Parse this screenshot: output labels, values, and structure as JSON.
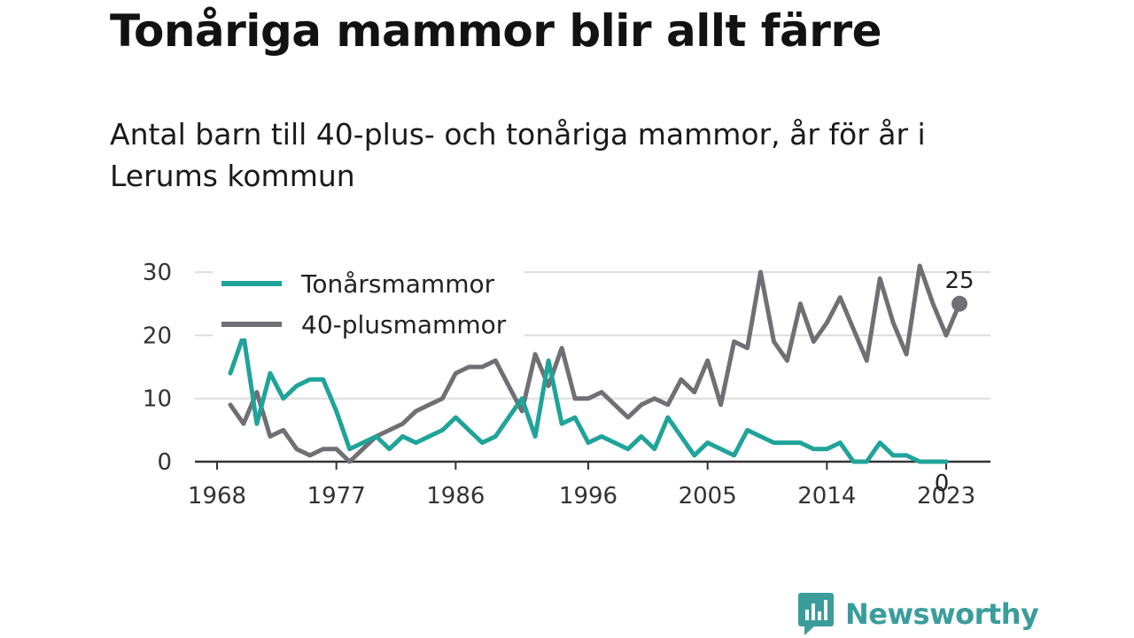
{
  "title": "Tonåriga mammor blir allt färre",
  "subtitle": "Antal barn till 40-plus- och tonåriga mammor, år för år i Lerums kommun",
  "brand": "Newsworthy",
  "chart_data": {
    "type": "line",
    "x": [
      1969,
      1970,
      1971,
      1972,
      1973,
      1974,
      1975,
      1976,
      1977,
      1978,
      1979,
      1980,
      1981,
      1982,
      1983,
      1984,
      1985,
      1986,
      1987,
      1988,
      1989,
      1990,
      1991,
      1992,
      1993,
      1994,
      1995,
      1996,
      1997,
      1998,
      1999,
      2000,
      2001,
      2002,
      2003,
      2004,
      2005,
      2006,
      2007,
      2008,
      2009,
      2010,
      2011,
      2012,
      2013,
      2014,
      2015,
      2016,
      2017,
      2018,
      2019,
      2020,
      2021,
      2022,
      2023
    ],
    "series": [
      {
        "name": "Tonårsmammor",
        "color": "#1fa39a",
        "values": [
          14,
          20,
          6,
          14,
          10,
          12,
          13,
          13,
          8,
          2,
          3,
          4,
          2,
          4,
          3,
          4,
          5,
          7,
          5,
          3,
          4,
          7,
          10,
          4,
          16,
          6,
          7,
          3,
          4,
          3,
          2,
          4,
          2,
          7,
          4,
          1,
          3,
          2,
          1,
          5,
          4,
          3,
          3,
          3,
          2,
          2,
          3,
          0,
          0,
          3,
          1,
          1,
          0,
          0,
          0
        ]
      },
      {
        "name": "40-plusmammor",
        "color": "#707074",
        "values": [
          9,
          6,
          11,
          4,
          5,
          2,
          1,
          2,
          2,
          0,
          2,
          4,
          5,
          6,
          8,
          9,
          10,
          14,
          15,
          15,
          16,
          12,
          8,
          17,
          12,
          18,
          10,
          10,
          11,
          9,
          7,
          9,
          10,
          9,
          13,
          11,
          16,
          9,
          19,
          18,
          30,
          19,
          16,
          25,
          19,
          22,
          26,
          21,
          16,
          29,
          22,
          17,
          31,
          25,
          20
        ]
      }
    ],
    "end_labels": [
      "25",
      "0"
    ],
    "end_label_extra_point": {
      "x": 2024,
      "value": 25
    },
    "x_ticks": [
      1968,
      1977,
      1986,
      1996,
      2005,
      2014,
      2023
    ],
    "y_ticks": [
      0,
      10,
      20,
      30
    ],
    "ylim": [
      0,
      31
    ],
    "xlim": [
      1968,
      2024
    ],
    "grid": true,
    "legend_position": "top-left"
  }
}
